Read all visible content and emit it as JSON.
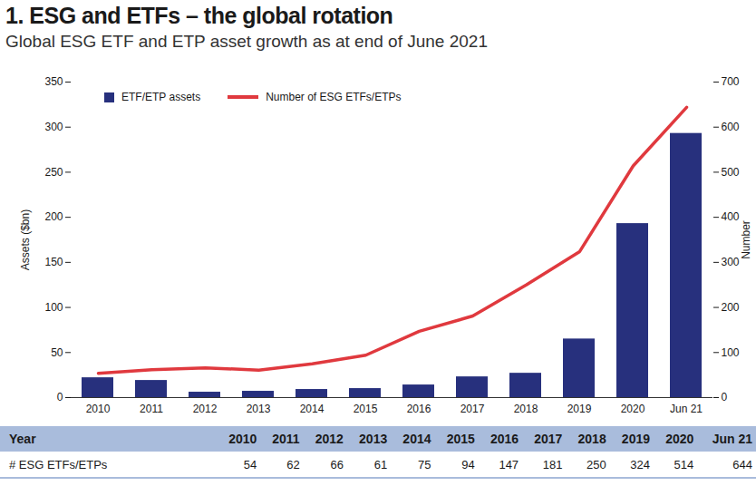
{
  "chart_data": {
    "type": "bar",
    "title": "1. ESG and ETFs – the global rotation",
    "subtitle": "Global ESG ETF and ETP asset growth as at end of June 2021",
    "categories": [
      "2010",
      "2011",
      "2012",
      "2013",
      "2014",
      "2015",
      "2016",
      "2017",
      "2018",
      "2019",
      "2020",
      "Jun 21"
    ],
    "series": [
      {
        "name": "ETF/ETP assets",
        "type": "bar",
        "color": "#27307d",
        "values": [
          22,
          19,
          6,
          7,
          9,
          10,
          14,
          23,
          27,
          65,
          193,
          293
        ]
      },
      {
        "name": "Number of ESG ETFs/ETPs",
        "type": "line",
        "color": "#e0393e",
        "axis": "y2",
        "values": [
          54,
          62,
          66,
          61,
          75,
          94,
          147,
          181,
          250,
          324,
          514,
          644
        ]
      }
    ],
    "y_label": "Assets ($bn)",
    "y2_label": "Number",
    "ylim": [
      0,
      350
    ],
    "yticks": [
      0,
      50,
      100,
      150,
      200,
      250,
      300,
      350
    ],
    "y2lim": [
      0,
      700
    ],
    "y2ticks": [
      0,
      100,
      200,
      300,
      400,
      500,
      600,
      700
    ],
    "grid": false,
    "legend": "top-left",
    "table_header": "Year",
    "table_row_label": "# ESG ETFs/ETPs"
  }
}
